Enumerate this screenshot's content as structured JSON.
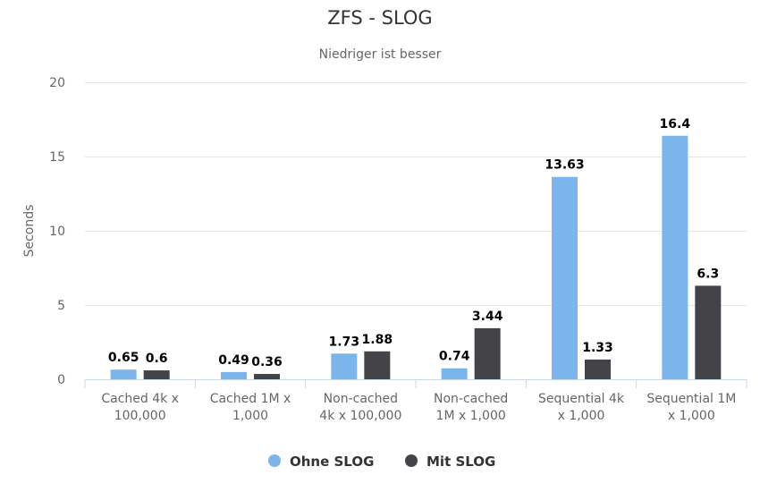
{
  "chart_data": {
    "type": "bar",
    "title": "ZFS - SLOG",
    "subtitle": "Niedriger ist besser",
    "xlabel": "",
    "ylabel": "Seconds",
    "ylim": [
      0,
      20
    ],
    "yticks": [
      0,
      5,
      10,
      15,
      20
    ],
    "grid": true,
    "legend_placement": "bottom",
    "categories": [
      [
        "Cached 4k x",
        "100,000"
      ],
      [
        "Cached 1M x",
        "1,000"
      ],
      [
        "Non-cached",
        "4k x 100,000"
      ],
      [
        "Non-cached",
        "1M x 1,000"
      ],
      [
        "Sequential 4k",
        "x 1,000"
      ],
      [
        "Sequential 1M",
        "x 1,000"
      ]
    ],
    "series": [
      {
        "name": "Ohne SLOG",
        "color": "#7cb5ec",
        "values": [
          0.65,
          0.49,
          1.73,
          0.74,
          13.63,
          16.4
        ]
      },
      {
        "name": "Mit SLOG",
        "color": "#434348",
        "values": [
          0.6,
          0.36,
          1.88,
          3.44,
          1.33,
          6.3
        ]
      }
    ]
  }
}
